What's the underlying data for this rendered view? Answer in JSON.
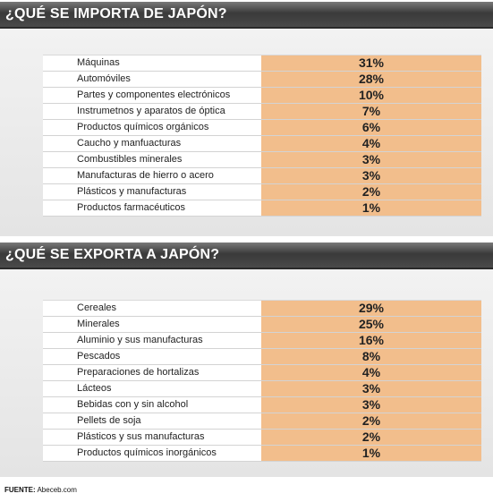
{
  "chart_data": [
    {
      "type": "table",
      "title": "¿QUÉ SE IMPORTA DE JAPÓN?",
      "categories": [
        "Máquinas",
        "Automóviles",
        "Partes y componentes electrónicos",
        "Instrumetnos y aparatos de óptica",
        "Productos químicos orgánicos",
        "Caucho y manfuacturas",
        "Combustibles minerales",
        "Manufacturas de hierro o acero",
        "Plásticos y manufacturas",
        "Productos farmacéuticos"
      ],
      "values": [
        31,
        28,
        10,
        7,
        6,
        4,
        3,
        3,
        2,
        1
      ],
      "labels": [
        "31%",
        "28%",
        "10%",
        "7%",
        "6%",
        "4%",
        "3%",
        "3%",
        "2%",
        "1%"
      ]
    },
    {
      "type": "table",
      "title": "¿QUÉ SE EXPORTA A JAPÓN?",
      "categories": [
        "Cereales",
        "Minerales",
        "Aluminio y sus manufacturas",
        "Pescados",
        "Preparaciones de hortalizas",
        "Lácteos",
        "Bebidas con y sin alcohol",
        "Pellets de soja",
        "Plásticos y sus manufacturas",
        "Productos químicos inorgánicos"
      ],
      "values": [
        29,
        25,
        16,
        8,
        4,
        3,
        3,
        2,
        2,
        1
      ],
      "labels": [
        "29%",
        "25%",
        "16%",
        "8%",
        "4%",
        "3%",
        "3%",
        "2%",
        "2%",
        "1%"
      ]
    }
  ],
  "source": {
    "label": "FUENTE:",
    "text": "Abeceb.com"
  },
  "colors": {
    "value_cell": "#f2be8c",
    "header": "#4a4a4a"
  }
}
